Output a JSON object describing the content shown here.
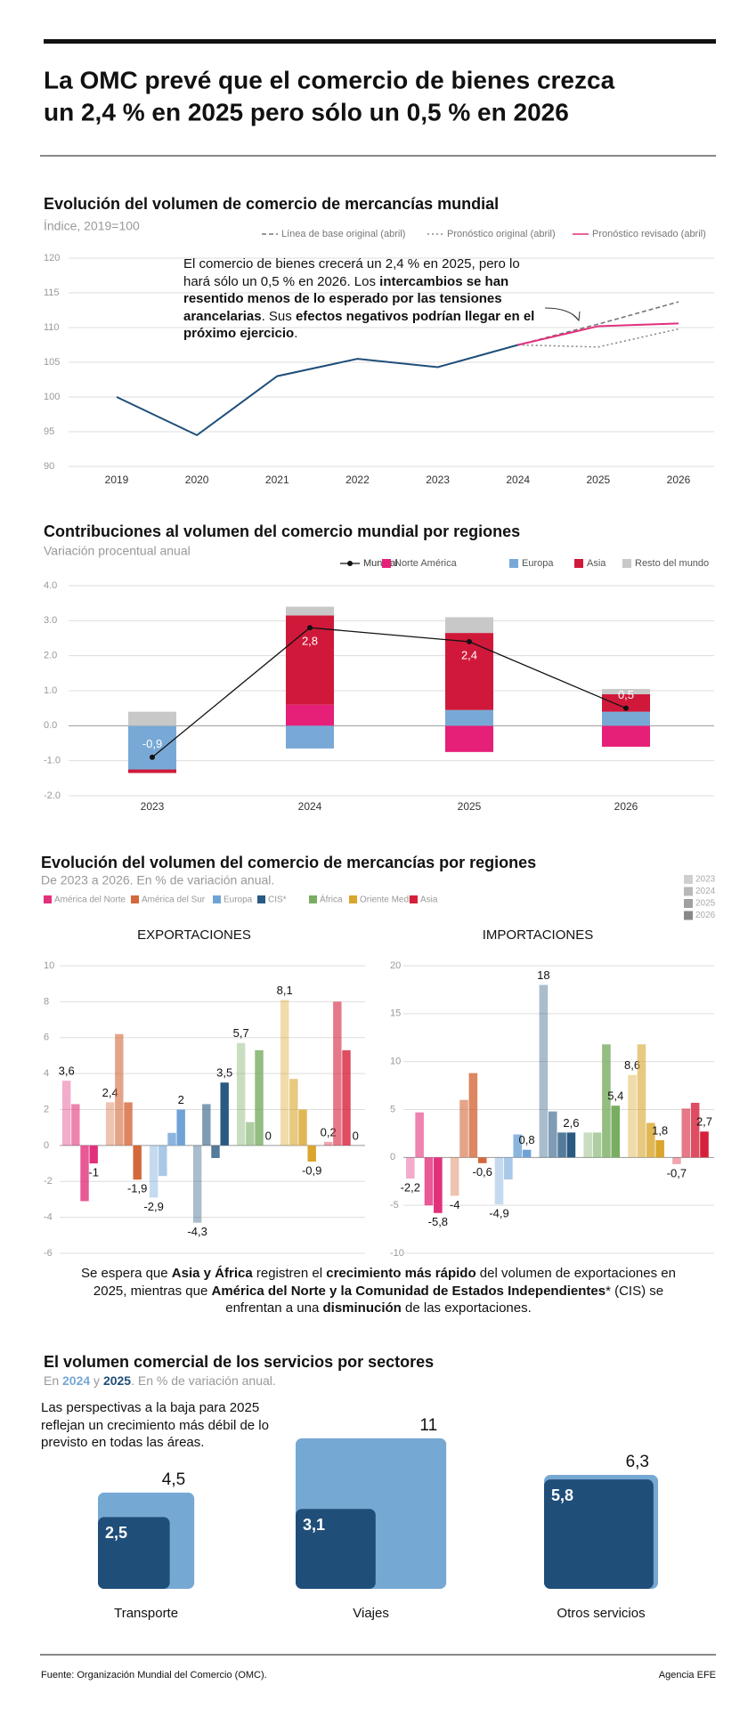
{
  "headline": [
    "La OMC prevé que el comercio de bienes crezca",
    "un 2,4 % en 2025 pero sólo un 0,5 % en 2026"
  ],
  "chart_data": [
    {
      "type": "line",
      "title": "Evolución del volumen de comercio de mercancías mundial",
      "subtitle": "Índice, 2019=100",
      "categories": [
        "2019",
        "2020",
        "2021",
        "2022",
        "2023",
        "2024",
        "2025",
        "2026"
      ],
      "ylim": [
        90,
        120
      ],
      "yticks": [
        90,
        95,
        100,
        105,
        110,
        115,
        120
      ],
      "grid": true,
      "annotation": [
        "El comercio de bienes crecerá un 2,4 % en 2025, pero lo hará sólo un 0,5 % en 2026. Los ",
        "intercambios se han resentido menos de lo esperado por las tensiones arancelarias",
        ". Sus ",
        "efectos negativos podrían llegar en el próximo ejercicio",
        "."
      ],
      "series": [
        {
          "color": "#1f4e79",
          "values": [
            100,
            94.5,
            103,
            105.5,
            104.3,
            107.5,
            null,
            null
          ]
        },
        {
          "name": "Línea de base original (abril)",
          "color": "#777777",
          "dash": "dashed",
          "values": [
            null,
            null,
            null,
            null,
            null,
            107.5,
            110.5,
            113.7
          ]
        },
        {
          "name": "Pronóstico original (abril)",
          "color": "#888888",
          "dash": "dotted",
          "values": [
            null,
            null,
            null,
            null,
            null,
            107.5,
            107.2,
            109.8
          ]
        },
        {
          "name": "Pronóstico revisado (abril)",
          "color": "#e2307c",
          "values": [
            null,
            null,
            null,
            null,
            null,
            107.5,
            110.2,
            110.6
          ]
        }
      ]
    },
    {
      "type": "bar",
      "stacked": true,
      "title": "Contribuciones al volumen del comercio mundial por regiones",
      "subtitle": "Variación procentual anual",
      "categories": [
        "2023",
        "2024",
        "2025",
        "2026"
      ],
      "ylim": [
        -2,
        4
      ],
      "yticks": [
        {
          "value": -2,
          "label": "-2.0"
        },
        {
          "value": -1,
          "label": "-1.0"
        },
        {
          "value": 0,
          "label": "0.0"
        },
        {
          "value": 1,
          "label": "1.0"
        },
        {
          "value": 2,
          "label": "2.0"
        },
        {
          "value": 3,
          "label": "3.0"
        },
        {
          "value": 4,
          "label": "4.0"
        }
      ],
      "grid": true,
      "series": [
        {
          "name": "Mundial",
          "type": "line",
          "color": "#111111",
          "values": [
            -0.9,
            2.8,
            2.4,
            0.5
          ],
          "value_labels": [
            "-0,9",
            "2,8",
            "2,4",
            "0,5"
          ]
        },
        {
          "name": "Norte América",
          "color": "#e61f78",
          "values": [
            0,
            0.6,
            -0.75,
            -0.6
          ]
        },
        {
          "name": "Europa",
          "color": "#78a9d6",
          "values": [
            -1.25,
            -0.65,
            0.45,
            0.4
          ]
        },
        {
          "name": "Asia",
          "color": "#d0193a",
          "values": [
            -0.1,
            2.55,
            2.2,
            0.5
          ]
        },
        {
          "name": "Resto del mundo",
          "color": "#c8c8c8",
          "values": [
            0.4,
            0.25,
            0.45,
            0.15
          ]
        }
      ]
    },
    {
      "type": "grouped-bar",
      "title": "EXPORTACIONES",
      "years": [
        "2023",
        "2024",
        "2025",
        "2026"
      ],
      "ylim": [
        -6,
        10
      ],
      "yticks": [
        -6,
        -4,
        -2,
        0,
        2,
        4,
        6,
        8,
        10
      ],
      "grid": true,
      "series": [
        {
          "name": "América del Norte",
          "color": "#e2307c",
          "values": [
            3.6,
            2.3,
            -3.1,
            -1
          ],
          "value_labels": [
            "3,6",
            null,
            null,
            "-1"
          ]
        },
        {
          "name": "América del Sur",
          "color": "#d4683a",
          "values": [
            2.4,
            6.2,
            2.4,
            -1.9
          ],
          "value_labels": [
            "2,4",
            null,
            null,
            "-1,9"
          ]
        },
        {
          "name": "Europa",
          "color": "#6fa3d6",
          "values": [
            -2.9,
            -1.7,
            0.7,
            2
          ],
          "value_labels": [
            "-2,9",
            null,
            null,
            "2"
          ]
        },
        {
          "name": "CIS*",
          "color": "#2a5a82",
          "values": [
            -4.3,
            2.3,
            -0.7,
            3.5
          ],
          "value_labels": [
            "-4,3",
            null,
            null,
            "3,5"
          ]
        },
        {
          "name": "África",
          "color": "#78ad62",
          "values": [
            5.7,
            1.3,
            5.3,
            0
          ],
          "value_labels": [
            "5,7",
            null,
            null,
            "0"
          ]
        },
        {
          "name": "Oriente Medio",
          "color": "#d9a52c",
          "values": [
            8.1,
            3.7,
            2,
            -0.9
          ],
          "value_labels": [
            "8,1",
            null,
            null,
            "-0,9"
          ]
        },
        {
          "name": "Asia",
          "color": "#d6203b",
          "values": [
            0.2,
            8,
            5.3,
            0
          ],
          "value_labels": [
            "0,2",
            null,
            null,
            "0"
          ]
        }
      ]
    },
    {
      "type": "grouped-bar",
      "title": "IMPORTACIONES",
      "ylim": [
        -10,
        20
      ],
      "yticks": [
        -10,
        -5,
        0,
        5,
        10,
        15,
        20
      ],
      "grid": true,
      "series": [
        {
          "color": "#e2307c",
          "values": [
            -2.2,
            4.7,
            -5,
            -5.8
          ],
          "value_labels": [
            "-2,2",
            null,
            null,
            "-5,8"
          ]
        },
        {
          "color": "#d4683a",
          "values": [
            -4,
            6,
            8.8,
            -0.6
          ],
          "value_labels": [
            "-4",
            null,
            null,
            "-0,6"
          ]
        },
        {
          "color": "#6fa3d6",
          "values": [
            -4.9,
            -2.3,
            2.4,
            0.8
          ],
          "value_labels": [
            "-4,9",
            null,
            null,
            "0,8"
          ]
        },
        {
          "color": "#2a5a82",
          "values": [
            18,
            4.8,
            2.6,
            2.6
          ],
          "value_labels": [
            "18",
            null,
            null,
            "2,6"
          ]
        },
        {
          "color": "#78ad62",
          "values": [
            2.6,
            2.6,
            11.8,
            5.4
          ],
          "value_labels": [
            null,
            null,
            null,
            "5,4"
          ]
        },
        {
          "color": "#d9a52c",
          "values": [
            8.6,
            11.8,
            3.6,
            1.8
          ],
          "value_labels": [
            "8,6",
            null,
            null,
            "1,8"
          ]
        },
        {
          "color": "#d6203b",
          "values": [
            -0.7,
            5.1,
            5.7,
            2.7
          ],
          "value_labels": [
            "-0,7",
            null,
            null,
            "2,7"
          ]
        }
      ]
    },
    {
      "type": "square",
      "title": "El volumen comercial de los servicios por sectores",
      "subtitle": [
        "En ",
        " y ",
        ". En % de variación anual."
      ],
      "note": "Las perspectivas a la baja para 2025 reflejan un crecimiento más débil de lo previsto en todas las áreas.",
      "categories": [
        "Transporte",
        "Viajes",
        "Otros servicios"
      ],
      "series": [
        {
          "name": "2024",
          "color": "#76a8d4",
          "values": [
            4.5,
            11,
            6.3
          ],
          "value_labels": [
            "4,5",
            "11",
            "6,3"
          ]
        },
        {
          "name": "2025",
          "color": "#1f4e79",
          "values": [
            2.5,
            3.1,
            5.8
          ],
          "value_labels": [
            "2,5",
            "3,1",
            "5,8"
          ]
        }
      ]
    }
  ],
  "regions_section": {
    "title": "Evolución del volumen del comercio de mercancías por regiones",
    "subtitle": "De 2023 a 2026. En % de variación anual.",
    "paragraph": [
      "Se espera que ",
      "Asia y África",
      " registren el ",
      "crecimiento más rápido",
      " del volumen de exportaciones en 2025, mientras que ",
      "América del Norte y la Comunidad de Estados Independientes",
      "* (CIS) se enfrentan a una ",
      "disminución",
      " de las exportaciones."
    ]
  },
  "footer": {
    "source": "Fuente: Organización Mundial del Comercio (OMC).",
    "credit": "Agencia EFE"
  }
}
